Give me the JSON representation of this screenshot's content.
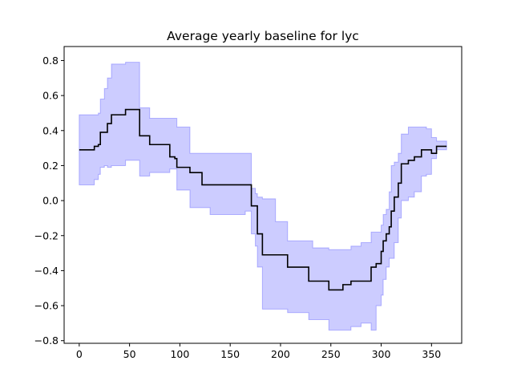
{
  "chart_data": {
    "type": "line",
    "title": "Average yearly baseline for lyc",
    "xlabel": "",
    "ylabel": "",
    "xlim": [
      -15,
      380
    ],
    "ylim": [
      -0.815,
      0.88
    ],
    "grid": false,
    "legend": "none",
    "x_ticks": [
      0,
      50,
      100,
      150,
      200,
      250,
      300,
      350
    ],
    "x_tick_labels": [
      "0",
      "50",
      "100",
      "150",
      "200",
      "250",
      "300",
      "350"
    ],
    "y_ticks": [
      -0.8,
      -0.6,
      -0.4,
      -0.2,
      0.0,
      0.2,
      0.4,
      0.6,
      0.8
    ],
    "y_tick_labels": [
      "−0.8",
      "−0.6",
      "−0.4",
      "−0.2",
      "0.0",
      "0.2",
      "0.4",
      "0.6",
      "0.8"
    ],
    "series": [
      {
        "role": "mean",
        "color": "#000000",
        "step": true,
        "x": [
          0,
          15,
          19,
          21,
          25,
          28,
          32,
          46,
          60,
          70,
          90,
          95,
          97,
          110,
          122,
          130,
          165,
          171,
          175,
          177,
          182,
          195,
          207,
          228,
          232,
          248,
          262,
          270,
          280,
          290,
          295,
          300,
          302,
          305,
          308,
          310,
          313,
          317,
          320,
          327,
          333,
          340,
          345,
          350,
          355,
          365
        ],
        "y": [
          0.29,
          0.31,
          0.32,
          0.39,
          0.39,
          0.44,
          0.49,
          0.52,
          0.37,
          0.32,
          0.25,
          0.24,
          0.19,
          0.16,
          0.09,
          0.09,
          0.09,
          -0.03,
          -0.03,
          -0.19,
          -0.31,
          -0.31,
          -0.38,
          -0.46,
          -0.46,
          -0.51,
          -0.48,
          -0.46,
          -0.46,
          -0.38,
          -0.36,
          -0.29,
          -0.23,
          -0.19,
          -0.15,
          -0.06,
          0.02,
          0.1,
          0.21,
          0.23,
          0.25,
          0.29,
          0.29,
          0.27,
          0.31,
          0.31
        ]
      },
      {
        "role": "confidence-band",
        "color": "#0000ff",
        "alpha": 0.2,
        "step": true,
        "x": [
          0,
          15,
          19,
          21,
          25,
          28,
          32,
          46,
          60,
          70,
          90,
          95,
          97,
          110,
          122,
          130,
          165,
          171,
          175,
          177,
          182,
          195,
          207,
          228,
          232,
          248,
          262,
          270,
          280,
          290,
          295,
          300,
          302,
          305,
          308,
          310,
          313,
          317,
          320,
          327,
          333,
          340,
          345,
          350,
          355,
          365
        ],
        "upper": [
          0.49,
          0.49,
          0.5,
          0.58,
          0.64,
          0.7,
          0.78,
          0.79,
          0.53,
          0.47,
          0.47,
          0.47,
          0.42,
          0.27,
          0.27,
          0.27,
          0.27,
          0.07,
          0.04,
          0.02,
          0.01,
          -0.12,
          -0.23,
          -0.23,
          -0.27,
          -0.28,
          -0.28,
          -0.26,
          -0.24,
          -0.18,
          -0.18,
          -0.14,
          -0.08,
          -0.05,
          0.05,
          0.2,
          0.22,
          0.27,
          0.38,
          0.42,
          0.42,
          0.42,
          0.41,
          0.36,
          0.34,
          0.34
        ],
        "lower": [
          0.09,
          0.12,
          0.15,
          0.19,
          0.2,
          0.19,
          0.2,
          0.23,
          0.14,
          0.16,
          0.18,
          0.18,
          0.06,
          -0.04,
          -0.04,
          -0.08,
          -0.06,
          -0.19,
          -0.26,
          -0.38,
          -0.62,
          -0.62,
          -0.64,
          -0.68,
          -0.68,
          -0.74,
          -0.74,
          -0.72,
          -0.7,
          -0.74,
          -0.6,
          -0.54,
          -0.45,
          -0.38,
          -0.33,
          -0.33,
          -0.24,
          -0.1,
          0.0,
          0.02,
          0.05,
          0.14,
          0.15,
          0.24,
          0.29,
          0.29
        ]
      }
    ]
  }
}
